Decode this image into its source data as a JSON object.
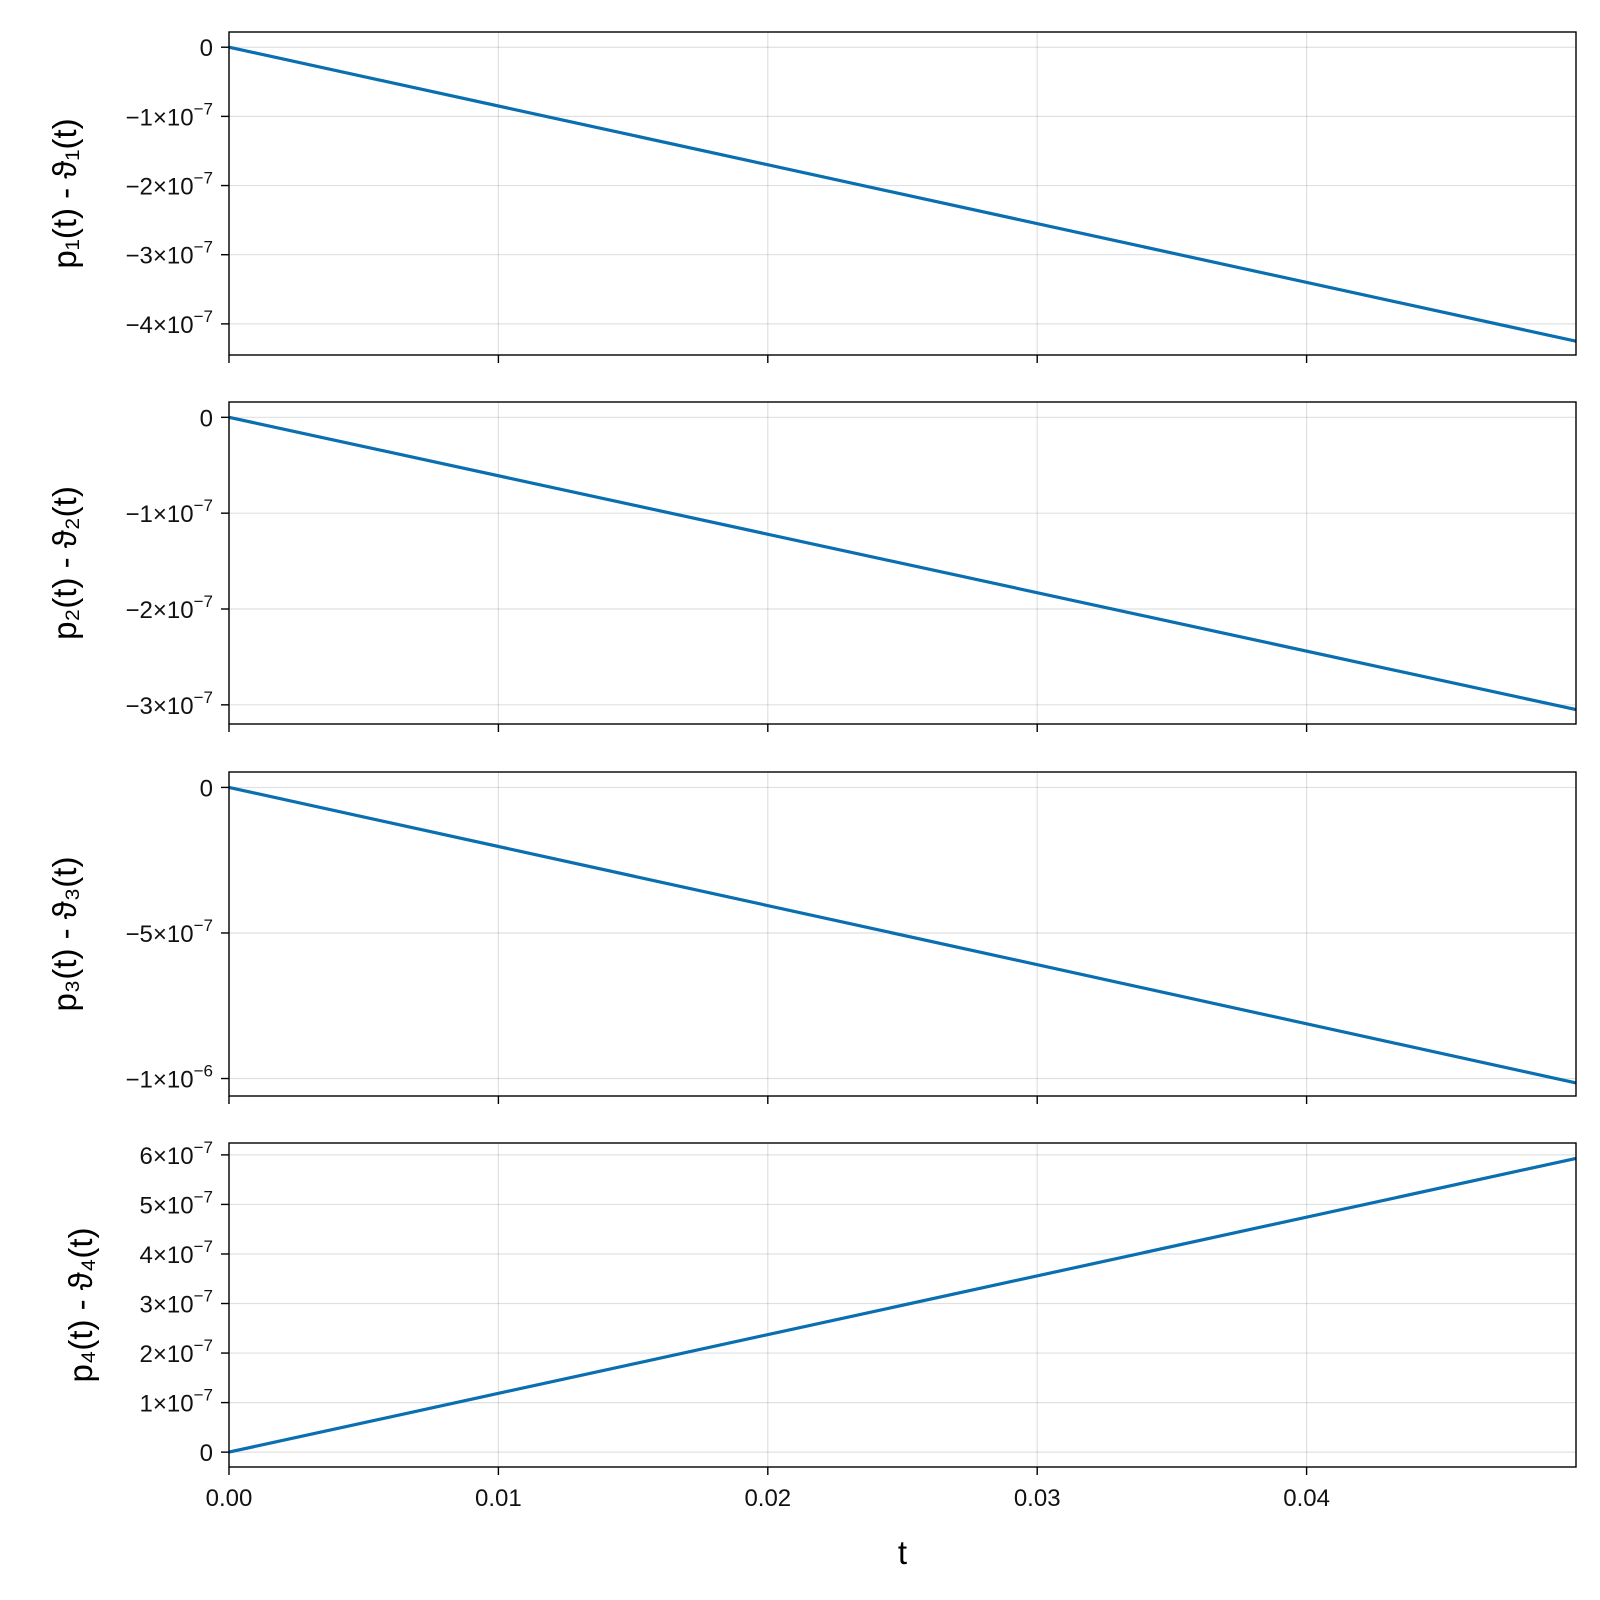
{
  "chart_data": [
    {
      "type": "line",
      "xlabel": "",
      "ylabel": "p₁(t) - ϑ₁(t)",
      "xlim": [
        0,
        0.05
      ],
      "ylim": [
        -4.45e-07,
        2.2e-08
      ],
      "grid": true,
      "x_ticks": [
        {
          "value": 0
        },
        {
          "value": 0.01
        },
        {
          "value": 0.02
        },
        {
          "value": 0.03
        },
        {
          "value": 0.04
        }
      ],
      "y_ticks": [
        {
          "value": 0,
          "mantissa": "0",
          "exponent": ""
        },
        {
          "value": -1e-07,
          "mantissa": "−1×10",
          "exponent": "−7"
        },
        {
          "value": -2e-07,
          "mantissa": "−2×10",
          "exponent": "−7"
        },
        {
          "value": -3e-07,
          "mantissa": "−3×10",
          "exponent": "−7"
        },
        {
          "value": -4e-07,
          "mantissa": "−4×10",
          "exponent": "−7"
        }
      ],
      "series": [
        {
          "x": [
            0,
            0.05
          ],
          "y": [
            0,
            -4.25e-07
          ]
        }
      ]
    },
    {
      "type": "line",
      "xlabel": "",
      "ylabel": "p₂(t) - ϑ₂(t)",
      "xlim": [
        0,
        0.05
      ],
      "ylim": [
        -3.2e-07,
        1.6e-08
      ],
      "grid": true,
      "x_ticks": [
        {
          "value": 0
        },
        {
          "value": 0.01
        },
        {
          "value": 0.02
        },
        {
          "value": 0.03
        },
        {
          "value": 0.04
        }
      ],
      "y_ticks": [
        {
          "value": 0,
          "mantissa": "0",
          "exponent": ""
        },
        {
          "value": -1e-07,
          "mantissa": "−1×10",
          "exponent": "−7"
        },
        {
          "value": -2e-07,
          "mantissa": "−2×10",
          "exponent": "−7"
        },
        {
          "value": -3e-07,
          "mantissa": "−3×10",
          "exponent": "−7"
        }
      ],
      "series": [
        {
          "x": [
            0,
            0.05
          ],
          "y": [
            0,
            -3.05e-07
          ]
        }
      ]
    },
    {
      "type": "line",
      "xlabel": "",
      "ylabel": "p₃(t) - ϑ₃(t)",
      "xlim": [
        0,
        0.05
      ],
      "ylim": [
        -1.06e-06,
        5.3e-08
      ],
      "grid": true,
      "x_ticks": [
        {
          "value": 0
        },
        {
          "value": 0.01
        },
        {
          "value": 0.02
        },
        {
          "value": 0.03
        },
        {
          "value": 0.04
        }
      ],
      "y_ticks": [
        {
          "value": 0,
          "mantissa": "0",
          "exponent": ""
        },
        {
          "value": -5e-07,
          "mantissa": "−5×10",
          "exponent": "−7"
        },
        {
          "value": -1e-06,
          "mantissa": "−1×10",
          "exponent": "−6"
        }
      ],
      "series": [
        {
          "x": [
            0,
            0.05
          ],
          "y": [
            0,
            -1.015e-06
          ]
        }
      ]
    },
    {
      "type": "line",
      "xlabel": "t",
      "ylabel": "p₄(t) - ϑ₄(t)",
      "xlim": [
        0,
        0.05
      ],
      "ylim": [
        -3e-08,
        6.24e-07
      ],
      "grid": true,
      "x_ticks": [
        {
          "value": 0,
          "label": "0.00"
        },
        {
          "value": 0.01,
          "label": "0.01"
        },
        {
          "value": 0.02,
          "label": "0.02"
        },
        {
          "value": 0.03,
          "label": "0.03"
        },
        {
          "value": 0.04,
          "label": "0.04"
        }
      ],
      "y_ticks": [
        {
          "value": 0,
          "mantissa": "0",
          "exponent": ""
        },
        {
          "value": 1e-07,
          "mantissa": "1×10",
          "exponent": "−7"
        },
        {
          "value": 2e-07,
          "mantissa": "2×10",
          "exponent": "−7"
        },
        {
          "value": 3e-07,
          "mantissa": "3×10",
          "exponent": "−7"
        },
        {
          "value": 4e-07,
          "mantissa": "4×10",
          "exponent": "−7"
        },
        {
          "value": 5e-07,
          "mantissa": "5×10",
          "exponent": "−7"
        },
        {
          "value": 6e-07,
          "mantissa": "6×10",
          "exponent": "−7"
        }
      ],
      "series": [
        {
          "x": [
            0,
            0.05
          ],
          "y": [
            0,
            5.93e-07
          ]
        }
      ]
    }
  ]
}
